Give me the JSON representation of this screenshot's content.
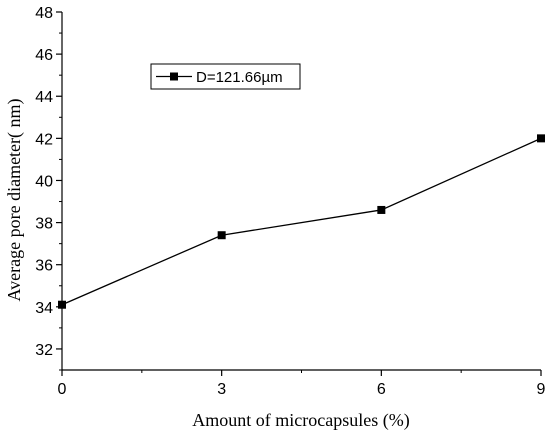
{
  "chart_data": {
    "type": "line",
    "title": "",
    "xlabel": "Amount of microcapsules (%)",
    "ylabel": "Average pore diameter(  nm)",
    "x": [
      0,
      3,
      6,
      9
    ],
    "xlim": [
      0,
      9
    ],
    "ylim": [
      31,
      48
    ],
    "x_ticks": [
      "0",
      "3",
      "6",
      "9"
    ],
    "y_ticks": [
      "32",
      "34",
      "36",
      "38",
      "40",
      "42",
      "44",
      "46",
      "48"
    ],
    "grid": false,
    "legend_position": "top-left",
    "series": [
      {
        "name": "D=121.66µm",
        "values": [
          34.1,
          37.4,
          38.6,
          42.0
        ],
        "color": "#000000",
        "marker": "square"
      }
    ]
  }
}
